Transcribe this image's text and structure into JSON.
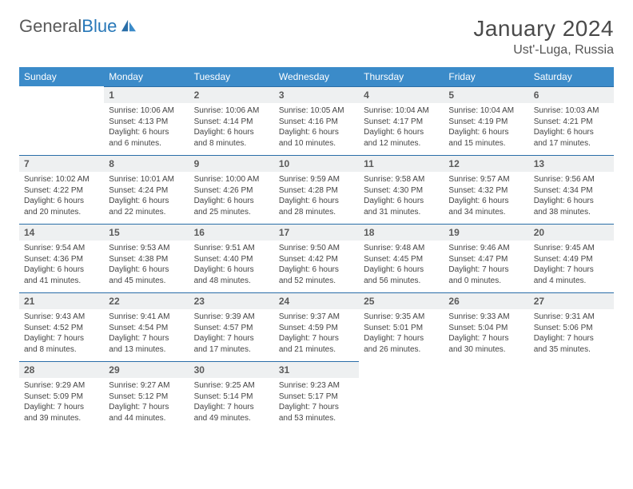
{
  "brand": {
    "part1": "General",
    "part2": "Blue"
  },
  "title": "January 2024",
  "location": "Ust'-Luga, Russia",
  "header_bg": "#3b8bc9",
  "divider_color": "#2a6ea8",
  "dayhdr_bg": "#eef0f1",
  "weekdays": [
    "Sunday",
    "Monday",
    "Tuesday",
    "Wednesday",
    "Thursday",
    "Friday",
    "Saturday"
  ],
  "weeks": [
    [
      null,
      {
        "n": "1",
        "sr": "10:06 AM",
        "ss": "4:13 PM",
        "dl": "6 hours and 6 minutes."
      },
      {
        "n": "2",
        "sr": "10:06 AM",
        "ss": "4:14 PM",
        "dl": "6 hours and 8 minutes."
      },
      {
        "n": "3",
        "sr": "10:05 AM",
        "ss": "4:16 PM",
        "dl": "6 hours and 10 minutes."
      },
      {
        "n": "4",
        "sr": "10:04 AM",
        "ss": "4:17 PM",
        "dl": "6 hours and 12 minutes."
      },
      {
        "n": "5",
        "sr": "10:04 AM",
        "ss": "4:19 PM",
        "dl": "6 hours and 15 minutes."
      },
      {
        "n": "6",
        "sr": "10:03 AM",
        "ss": "4:21 PM",
        "dl": "6 hours and 17 minutes."
      }
    ],
    [
      {
        "n": "7",
        "sr": "10:02 AM",
        "ss": "4:22 PM",
        "dl": "6 hours and 20 minutes."
      },
      {
        "n": "8",
        "sr": "10:01 AM",
        "ss": "4:24 PM",
        "dl": "6 hours and 22 minutes."
      },
      {
        "n": "9",
        "sr": "10:00 AM",
        "ss": "4:26 PM",
        "dl": "6 hours and 25 minutes."
      },
      {
        "n": "10",
        "sr": "9:59 AM",
        "ss": "4:28 PM",
        "dl": "6 hours and 28 minutes."
      },
      {
        "n": "11",
        "sr": "9:58 AM",
        "ss": "4:30 PM",
        "dl": "6 hours and 31 minutes."
      },
      {
        "n": "12",
        "sr": "9:57 AM",
        "ss": "4:32 PM",
        "dl": "6 hours and 34 minutes."
      },
      {
        "n": "13",
        "sr": "9:56 AM",
        "ss": "4:34 PM",
        "dl": "6 hours and 38 minutes."
      }
    ],
    [
      {
        "n": "14",
        "sr": "9:54 AM",
        "ss": "4:36 PM",
        "dl": "6 hours and 41 minutes."
      },
      {
        "n": "15",
        "sr": "9:53 AM",
        "ss": "4:38 PM",
        "dl": "6 hours and 45 minutes."
      },
      {
        "n": "16",
        "sr": "9:51 AM",
        "ss": "4:40 PM",
        "dl": "6 hours and 48 minutes."
      },
      {
        "n": "17",
        "sr": "9:50 AM",
        "ss": "4:42 PM",
        "dl": "6 hours and 52 minutes."
      },
      {
        "n": "18",
        "sr": "9:48 AM",
        "ss": "4:45 PM",
        "dl": "6 hours and 56 minutes."
      },
      {
        "n": "19",
        "sr": "9:46 AM",
        "ss": "4:47 PM",
        "dl": "7 hours and 0 minutes."
      },
      {
        "n": "20",
        "sr": "9:45 AM",
        "ss": "4:49 PM",
        "dl": "7 hours and 4 minutes."
      }
    ],
    [
      {
        "n": "21",
        "sr": "9:43 AM",
        "ss": "4:52 PM",
        "dl": "7 hours and 8 minutes."
      },
      {
        "n": "22",
        "sr": "9:41 AM",
        "ss": "4:54 PM",
        "dl": "7 hours and 13 minutes."
      },
      {
        "n": "23",
        "sr": "9:39 AM",
        "ss": "4:57 PM",
        "dl": "7 hours and 17 minutes."
      },
      {
        "n": "24",
        "sr": "9:37 AM",
        "ss": "4:59 PM",
        "dl": "7 hours and 21 minutes."
      },
      {
        "n": "25",
        "sr": "9:35 AM",
        "ss": "5:01 PM",
        "dl": "7 hours and 26 minutes."
      },
      {
        "n": "26",
        "sr": "9:33 AM",
        "ss": "5:04 PM",
        "dl": "7 hours and 30 minutes."
      },
      {
        "n": "27",
        "sr": "9:31 AM",
        "ss": "5:06 PM",
        "dl": "7 hours and 35 minutes."
      }
    ],
    [
      {
        "n": "28",
        "sr": "9:29 AM",
        "ss": "5:09 PM",
        "dl": "7 hours and 39 minutes."
      },
      {
        "n": "29",
        "sr": "9:27 AM",
        "ss": "5:12 PM",
        "dl": "7 hours and 44 minutes."
      },
      {
        "n": "30",
        "sr": "9:25 AM",
        "ss": "5:14 PM",
        "dl": "7 hours and 49 minutes."
      },
      {
        "n": "31",
        "sr": "9:23 AM",
        "ss": "5:17 PM",
        "dl": "7 hours and 53 minutes."
      },
      null,
      null,
      null
    ]
  ],
  "labels": {
    "sunrise": "Sunrise:",
    "sunset": "Sunset:",
    "daylight": "Daylight:"
  }
}
